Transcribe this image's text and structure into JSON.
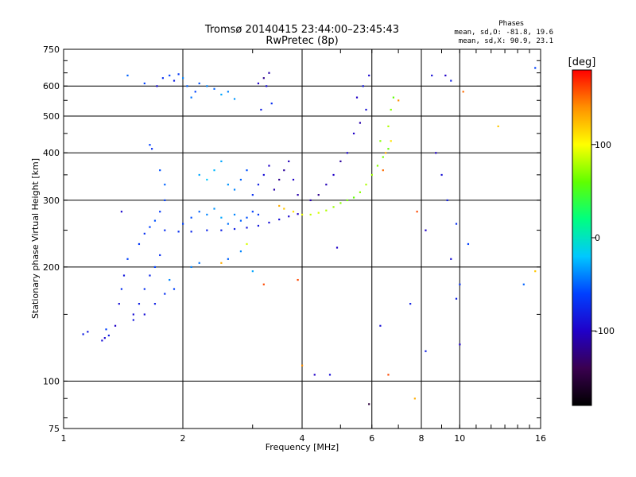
{
  "chart_data": {
    "type": "scatter",
    "title": "Tromsø 20140415 23:44:00–23:45:43",
    "subtitle": "RwPretec (8p)",
    "xlabel": "Frequency [MHz]",
    "ylabel": "Stationary phase Virtual Height [km]",
    "x_scale": "log",
    "y_scale": "log",
    "xlim": [
      1,
      16
    ],
    "ylim": [
      75,
      750
    ],
    "x_ticks": [
      1,
      2,
      4,
      6,
      8,
      10,
      16
    ],
    "y_ticks": [
      75,
      100,
      200,
      300,
      400,
      500,
      600,
      750
    ],
    "grid": true,
    "stats": {
      "heading": "Phases",
      "line_o": "mean, sd,O: -81.8, 19.6",
      "line_x": "mean, sd,X:  90.9, 23.1"
    },
    "colorbar": {
      "label": "[deg]",
      "range": [
        -180,
        180
      ],
      "ticks": [
        100,
        0,
        -100
      ],
      "colormap": [
        "#000000",
        "#3a0050",
        "#2000c8",
        "#0040ff",
        "#00c8ff",
        "#00ff80",
        "#60ff00",
        "#ffff00",
        "#ff9000",
        "#ff0000"
      ]
    },
    "series": [
      {
        "points": [
          [
            1.12,
            133,
            -80
          ],
          [
            1.15,
            135,
            -85
          ],
          [
            1.25,
            128,
            -90
          ],
          [
            1.27,
            130,
            -95
          ],
          [
            1.3,
            132,
            -80
          ],
          [
            1.28,
            137,
            -60
          ],
          [
            1.35,
            140,
            -100
          ],
          [
            1.38,
            160,
            -90
          ],
          [
            1.4,
            175,
            -70
          ],
          [
            1.42,
            190,
            -85
          ],
          [
            1.45,
            210,
            -60
          ],
          [
            1.4,
            280,
            -95
          ],
          [
            1.5,
            150,
            -90
          ],
          [
            1.55,
            160,
            -80
          ],
          [
            1.6,
            175,
            -70
          ],
          [
            1.65,
            190,
            -75
          ],
          [
            1.7,
            200,
            -60
          ],
          [
            1.75,
            215,
            -70
          ],
          [
            1.55,
            230,
            -65
          ],
          [
            1.6,
            245,
            -70
          ],
          [
            1.65,
            255,
            -60
          ],
          [
            1.7,
            265,
            -55
          ],
          [
            1.75,
            280,
            -65
          ],
          [
            1.8,
            300,
            -60
          ],
          [
            1.5,
            145,
            -85
          ],
          [
            1.6,
            150,
            -90
          ],
          [
            1.7,
            160,
            -80
          ],
          [
            1.8,
            170,
            -70
          ],
          [
            1.85,
            185,
            -40
          ],
          [
            1.9,
            175,
            -60
          ],
          [
            1.8,
            330,
            -50
          ],
          [
            1.75,
            360,
            -55
          ],
          [
            1.65,
            420,
            -60
          ],
          [
            1.72,
            600,
            -90
          ],
          [
            1.78,
            630,
            -70
          ],
          [
            1.85,
            640,
            -60
          ],
          [
            1.9,
            620,
            -80
          ],
          [
            1.95,
            645,
            -65
          ],
          [
            2.0,
            630,
            -40
          ],
          [
            2.05,
            600,
            -50
          ],
          [
            2.1,
            560,
            -45
          ],
          [
            2.15,
            580,
            -60
          ],
          [
            2.2,
            610,
            -55
          ],
          [
            2.3,
            600,
            -40
          ],
          [
            2.4,
            590,
            -50
          ],
          [
            2.5,
            570,
            -30
          ],
          [
            2.6,
            580,
            -40
          ],
          [
            2.7,
            555,
            -35
          ],
          [
            2.0,
            260,
            -60
          ],
          [
            2.1,
            270,
            -55
          ],
          [
            2.2,
            280,
            -50
          ],
          [
            2.3,
            275,
            -40
          ],
          [
            2.4,
            285,
            -35
          ],
          [
            2.5,
            270,
            -30
          ],
          [
            2.6,
            260,
            -45
          ],
          [
            2.7,
            275,
            -40
          ],
          [
            2.8,
            265,
            -50
          ],
          [
            2.9,
            270,
            -55
          ],
          [
            3.0,
            280,
            -60
          ],
          [
            3.1,
            275,
            -65
          ],
          [
            1.8,
            250,
            -70
          ],
          [
            1.95,
            248,
            -70
          ],
          [
            2.1,
            248,
            -75
          ],
          [
            2.3,
            250,
            -75
          ],
          [
            2.5,
            250,
            -80
          ],
          [
            2.7,
            252,
            -80
          ],
          [
            2.9,
            254,
            -85
          ],
          [
            3.1,
            257,
            -85
          ],
          [
            3.3,
            262,
            -90
          ],
          [
            3.5,
            267,
            -90
          ],
          [
            3.7,
            272,
            -95
          ],
          [
            3.9,
            276,
            -100
          ],
          [
            2.2,
            350,
            -30
          ],
          [
            2.3,
            340,
            -20
          ],
          [
            2.4,
            360,
            -25
          ],
          [
            2.5,
            380,
            -30
          ],
          [
            2.6,
            330,
            -35
          ],
          [
            2.7,
            320,
            -40
          ],
          [
            2.8,
            340,
            -50
          ],
          [
            2.9,
            360,
            -55
          ],
          [
            3.0,
            310,
            -70
          ],
          [
            3.1,
            330,
            -80
          ],
          [
            3.2,
            350,
            -90
          ],
          [
            3.3,
            370,
            -100
          ],
          [
            3.4,
            320,
            -110
          ],
          [
            3.5,
            340,
            -120
          ],
          [
            3.6,
            360,
            -115
          ],
          [
            3.7,
            380,
            -105
          ],
          [
            3.8,
            340,
            -100
          ],
          [
            3.9,
            310,
            -110
          ],
          [
            3.1,
            610,
            -100
          ],
          [
            3.2,
            630,
            -120
          ],
          [
            3.3,
            650,
            -110
          ],
          [
            3.25,
            600,
            -90
          ],
          [
            3.15,
            520,
            -80
          ],
          [
            3.35,
            540,
            -70
          ],
          [
            2.1,
            200,
            -40
          ],
          [
            2.2,
            205,
            -45
          ],
          [
            2.6,
            210,
            -50
          ],
          [
            2.8,
            220,
            -40
          ],
          [
            3.0,
            195,
            -30
          ],
          [
            3.2,
            180,
            160
          ],
          [
            3.5,
            290,
            130
          ],
          [
            3.6,
            285,
            120
          ],
          [
            3.8,
            280,
            110
          ],
          [
            4.0,
            275,
            95
          ],
          [
            4.2,
            275,
            85
          ],
          [
            4.4,
            278,
            90
          ],
          [
            4.6,
            282,
            80
          ],
          [
            4.8,
            288,
            75
          ],
          [
            5.0,
            295,
            70
          ],
          [
            5.2,
            300,
            65
          ],
          [
            5.4,
            305,
            60
          ],
          [
            5.6,
            315,
            70
          ],
          [
            5.8,
            330,
            80
          ],
          [
            6.0,
            350,
            75
          ],
          [
            6.2,
            370,
            70
          ],
          [
            6.4,
            390,
            65
          ],
          [
            6.6,
            410,
            60
          ],
          [
            6.3,
            430,
            70
          ],
          [
            4.2,
            300,
            -110
          ],
          [
            4.4,
            310,
            -120
          ],
          [
            4.6,
            330,
            -105
          ],
          [
            4.8,
            350,
            -100
          ],
          [
            5.0,
            380,
            -115
          ],
          [
            5.2,
            400,
            -95
          ],
          [
            5.4,
            450,
            -100
          ],
          [
            5.6,
            480,
            -110
          ],
          [
            5.8,
            520,
            -90
          ],
          [
            5.5,
            560,
            -100
          ],
          [
            5.7,
            600,
            -85
          ],
          [
            5.9,
            640,
            -95
          ],
          [
            6.6,
            470,
            80
          ],
          [
            6.7,
            520,
            70
          ],
          [
            6.8,
            560,
            60
          ],
          [
            6.7,
            430,
            110
          ],
          [
            6.5,
            400,
            130
          ],
          [
            6.4,
            360,
            150
          ],
          [
            7.0,
            550,
            140
          ],
          [
            8.5,
            640,
            -90
          ],
          [
            9.2,
            640,
            -100
          ],
          [
            9.5,
            620,
            -80
          ],
          [
            10.2,
            580,
            150
          ],
          [
            12.5,
            470,
            120
          ],
          [
            15.5,
            670,
            -60
          ],
          [
            8.7,
            400,
            -100
          ],
          [
            9.0,
            350,
            -90
          ],
          [
            9.3,
            300,
            -80
          ],
          [
            9.8,
            260,
            -70
          ],
          [
            10.5,
            230,
            -60
          ],
          [
            7.8,
            280,
            160
          ],
          [
            8.2,
            250,
            -100
          ],
          [
            9.5,
            210,
            -90
          ],
          [
            10.0,
            180,
            -70
          ],
          [
            15.5,
            195,
            120
          ],
          [
            14.5,
            180,
            -50
          ],
          [
            3.9,
            185,
            160
          ],
          [
            4.0,
            110,
            140
          ],
          [
            4.3,
            104,
            -100
          ],
          [
            4.7,
            104,
            -90
          ],
          [
            5.9,
            87,
            -150
          ],
          [
            6.6,
            104,
            160
          ],
          [
            7.7,
            90,
            130
          ],
          [
            8.2,
            120,
            -80
          ],
          [
            10.0,
            125,
            -100
          ],
          [
            6.3,
            140,
            -90
          ],
          [
            7.5,
            160,
            -80
          ],
          [
            9.8,
            165,
            -80
          ],
          [
            4.9,
            225,
            -100
          ],
          [
            2.5,
            205,
            130
          ],
          [
            2.9,
            230,
            90
          ],
          [
            1.45,
            640,
            -50
          ],
          [
            1.6,
            610,
            -60
          ],
          [
            1.67,
            410,
            -70
          ]
        ]
      }
    ]
  }
}
